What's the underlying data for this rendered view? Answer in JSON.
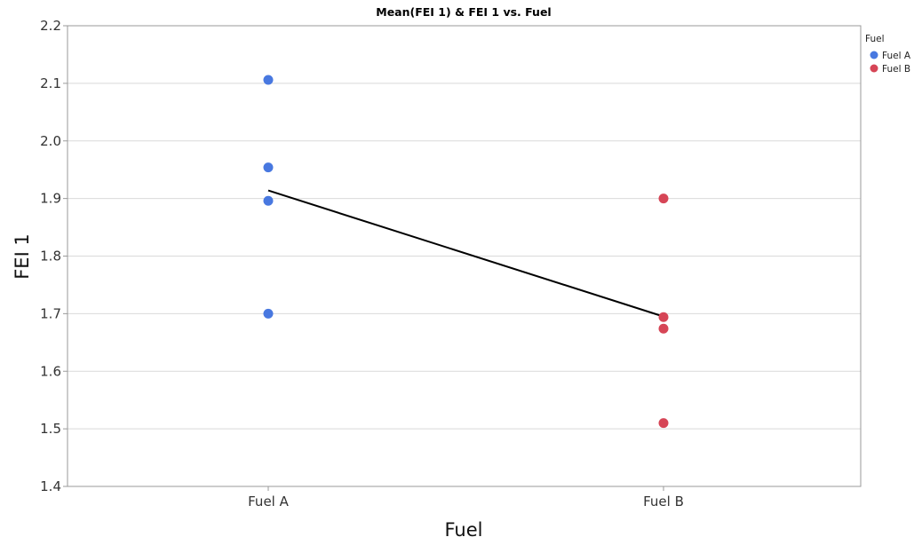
{
  "chart_data": {
    "type": "scatter",
    "title": "Mean(FEI 1) & FEI 1 vs. Fuel",
    "xlabel": "Fuel",
    "ylabel": "FEI 1",
    "categories": [
      "Fuel A",
      "Fuel B"
    ],
    "ylim": [
      1.4,
      2.2
    ],
    "y_ticks": [
      "1.4",
      "1.5",
      "1.6",
      "1.7",
      "1.8",
      "1.9",
      "2.0",
      "2.1",
      "2.2"
    ],
    "grid": true,
    "legend": {
      "title": "Fuel",
      "placement": "top-right",
      "entries": [
        "Fuel A",
        "Fuel B"
      ]
    },
    "series": [
      {
        "name": "Fuel A",
        "color": "#4878e0",
        "points": [
          {
            "x": "Fuel A",
            "y": 2.106
          },
          {
            "x": "Fuel A",
            "y": 1.954
          },
          {
            "x": "Fuel A",
            "y": 1.896
          },
          {
            "x": "Fuel A",
            "y": 1.7
          }
        ]
      },
      {
        "name": "Fuel B",
        "color": "#d64556",
        "points": [
          {
            "x": "Fuel B",
            "y": 1.9
          },
          {
            "x": "Fuel B",
            "y": 1.694
          },
          {
            "x": "Fuel B",
            "y": 1.674
          },
          {
            "x": "Fuel B",
            "y": 1.51
          }
        ]
      }
    ],
    "mean_line": {
      "color": "#000000",
      "points": [
        {
          "x": "Fuel A",
          "y": 1.914
        },
        {
          "x": "Fuel B",
          "y": 1.695
        }
      ]
    }
  }
}
